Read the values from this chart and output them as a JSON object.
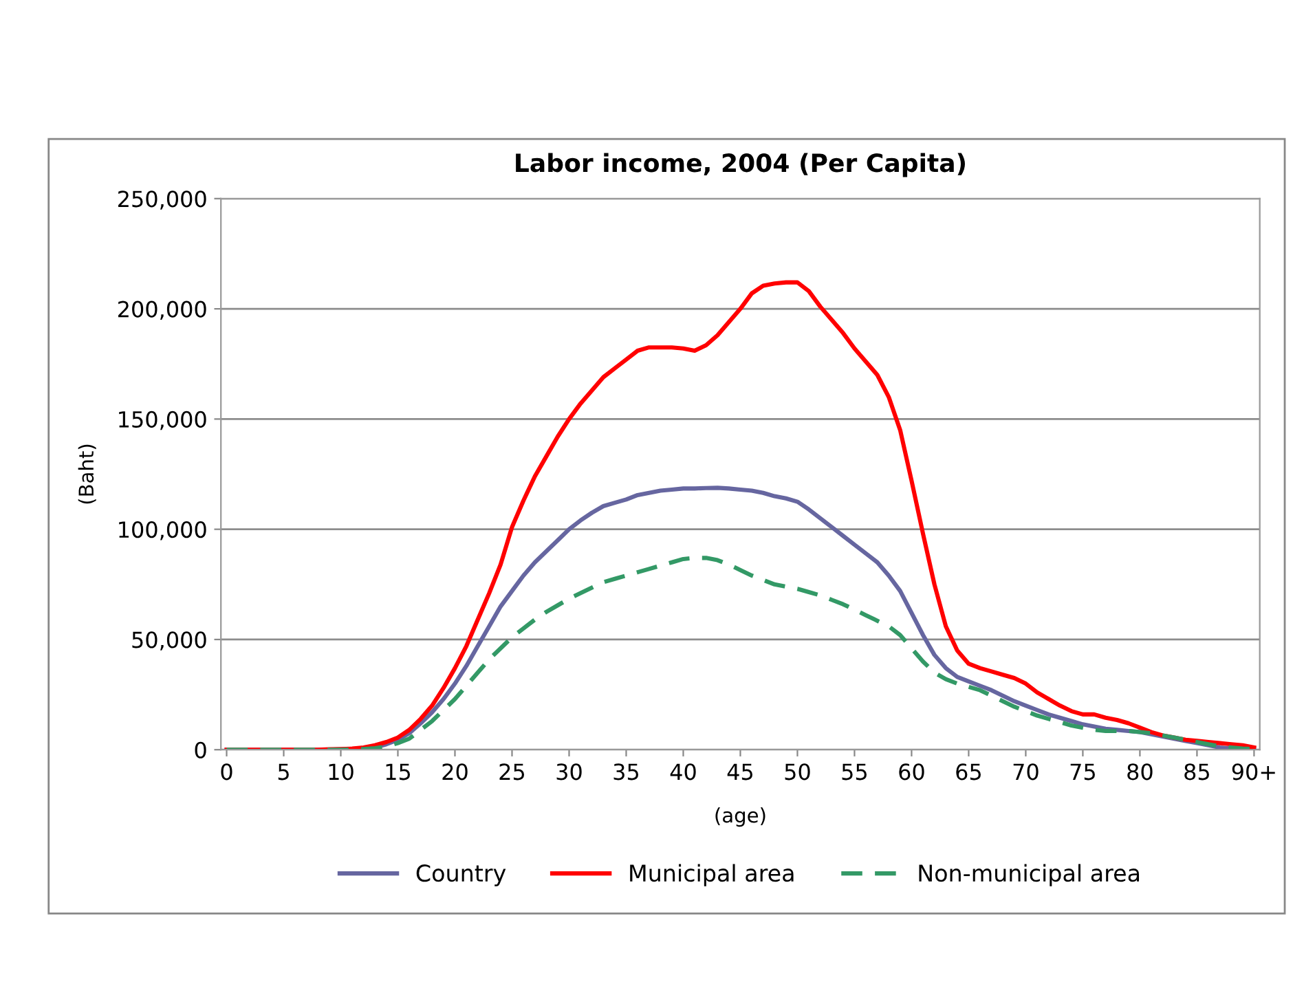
{
  "chart_data": {
    "type": "line",
    "title": "Labor income, 2004 (Per Capita)",
    "xlabel": "(age)",
    "ylabel": "(Baht)",
    "categories": [
      "0",
      null,
      null,
      null,
      null,
      "5",
      null,
      null,
      null,
      null,
      "10",
      null,
      null,
      null,
      null,
      "15",
      null,
      null,
      null,
      null,
      "20",
      null,
      null,
      null,
      null,
      "25",
      null,
      null,
      null,
      null,
      "30",
      null,
      null,
      null,
      null,
      "35",
      null,
      null,
      null,
      null,
      "40",
      null,
      null,
      null,
      null,
      "45",
      null,
      null,
      null,
      null,
      "50",
      null,
      null,
      null,
      null,
      "55",
      null,
      null,
      null,
      null,
      "60",
      null,
      null,
      null,
      null,
      "65",
      null,
      null,
      null,
      null,
      "70",
      null,
      null,
      null,
      null,
      "75",
      null,
      null,
      null,
      null,
      "80",
      null,
      null,
      null,
      null,
      "85",
      null,
      null,
      null,
      null,
      "90+"
    ],
    "series": [
      {
        "name": "Country",
        "color": "#6666a0",
        "line_style": "solid",
        "values": [
          0,
          0,
          0,
          0,
          0,
          0,
          0,
          0,
          0,
          0,
          200,
          300,
          500,
          1000,
          2500,
          4500,
          7500,
          12000,
          17000,
          23000,
          30000,
          38000,
          47000,
          56000,
          65000,
          72000,
          79000,
          85000,
          90000,
          95000,
          100000,
          104000,
          107500,
          110500,
          112000,
          113500,
          115500,
          116500,
          117500,
          118000,
          118500,
          118500,
          118700,
          118800,
          118500,
          118000,
          117500,
          116500,
          115000,
          114000,
          112500,
          109000,
          105000,
          101000,
          97000,
          93000,
          89000,
          85000,
          79000,
          72000,
          62000,
          52000,
          43000,
          37000,
          33000,
          31000,
          29000,
          27000,
          24500,
          22000,
          20000,
          18000,
          16000,
          14500,
          13000,
          11500,
          10500,
          9500,
          9000,
          8500,
          8000,
          7000,
          6000,
          5000,
          4000,
          3000,
          2000,
          1000,
          500,
          500,
          300
        ]
      },
      {
        "name": "Municipal area",
        "color": "#ff0000",
        "line_style": "solid",
        "values": [
          0,
          0,
          0,
          0,
          0,
          0,
          0,
          0,
          0,
          200,
          300,
          500,
          1000,
          2000,
          3500,
          5500,
          9000,
          14000,
          20000,
          28000,
          37000,
          47000,
          59000,
          71000,
          84000,
          101000,
          113000,
          124000,
          133000,
          142000,
          150000,
          157000,
          163000,
          169000,
          173000,
          177000,
          181000,
          182500,
          182500,
          182500,
          182000,
          181000,
          183500,
          188000,
          194000,
          200000,
          207000,
          210500,
          211500,
          212000,
          212000,
          208000,
          201000,
          195000,
          189000,
          182000,
          176000,
          170000,
          160000,
          145000,
          122000,
          98000,
          75000,
          56000,
          45000,
          39000,
          37000,
          35500,
          34000,
          32500,
          30000,
          26000,
          23000,
          20000,
          17500,
          16000,
          16000,
          14500,
          13500,
          12000,
          10000,
          8000,
          6500,
          5500,
          4500,
          4000,
          3500,
          3000,
          2500,
          2000,
          1000
        ]
      },
      {
        "name": "Non-municipal area",
        "color": "#339966",
        "line_style": "dashed",
        "values": [
          0,
          0,
          0,
          0,
          0,
          0,
          0,
          0,
          0,
          0,
          0,
          100,
          300,
          700,
          1500,
          3000,
          5000,
          9000,
          13000,
          18000,
          23000,
          29000,
          35000,
          41000,
          46000,
          51000,
          55000,
          59000,
          62500,
          65500,
          68500,
          71000,
          73500,
          76000,
          77500,
          79000,
          80500,
          82000,
          83500,
          85000,
          86500,
          87000,
          87000,
          86000,
          84000,
          81500,
          79000,
          77000,
          75000,
          74000,
          73000,
          71500,
          70000,
          68000,
          66000,
          63500,
          61000,
          58500,
          56000,
          52000,
          46000,
          40000,
          35000,
          32000,
          30000,
          28500,
          27000,
          24500,
          22000,
          19500,
          17500,
          15500,
          14000,
          12500,
          11000,
          10000,
          9000,
          8500,
          8500,
          8500,
          8000,
          7500,
          6500,
          5500,
          4500,
          3500,
          2500,
          1500,
          1000,
          500,
          300
        ]
      }
    ],
    "ylim": [
      0,
      250000
    ],
    "yticks": [
      0,
      {
        "value": 50000,
        "label": "50,000"
      },
      {
        "value": 100000,
        "label": "100,000"
      },
      {
        "value": 150000,
        "label": "150,000"
      },
      {
        "value": 200000,
        "label": "200,000"
      },
      {
        "value": 250000,
        "label": "250,000"
      }
    ],
    "grid": "y",
    "legend": "bottom",
    "marker": "none"
  }
}
